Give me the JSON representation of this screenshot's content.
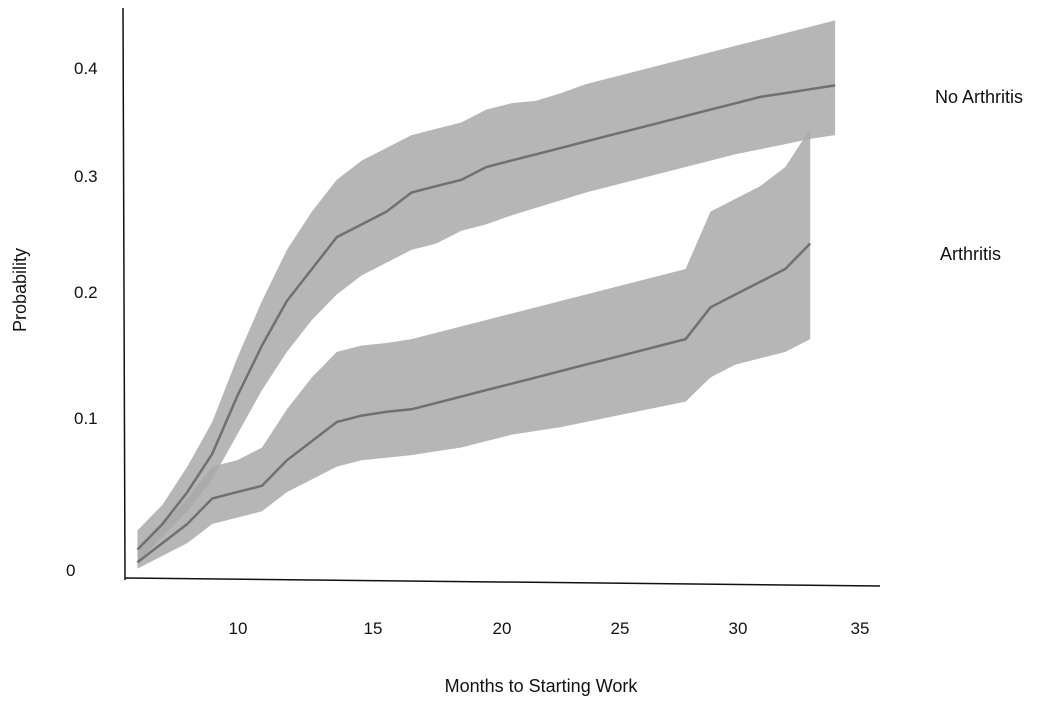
{
  "chart_data": {
    "type": "line",
    "title": "",
    "xlabel": "Months to Starting Work",
    "ylabel": "Probability",
    "xlim": [
      5.5,
      35
    ],
    "ylim": [
      0,
      0.4
    ],
    "x_ticks": [
      "10",
      "15",
      "20",
      "25",
      "30",
      "35"
    ],
    "y_ticks": [
      "0",
      "0.1",
      "0.2",
      "0.3",
      "0.4"
    ],
    "grid": false,
    "series": [
      {
        "name": "No Arthritis",
        "color": "#707070",
        "band_color": "#a9a9a9",
        "x": [
          6,
          7,
          8,
          9,
          10,
          11,
          12,
          13,
          14,
          15,
          16,
          17,
          18,
          19,
          20,
          21,
          22,
          23,
          24,
          25,
          26,
          27,
          28,
          29,
          30,
          31,
          32,
          33,
          34
        ],
        "y": [
          0.02,
          0.04,
          0.065,
          0.095,
          0.14,
          0.18,
          0.215,
          0.24,
          0.265,
          0.275,
          0.285,
          0.3,
          0.305,
          0.31,
          0.32,
          0.325,
          0.33,
          0.335,
          0.34,
          0.345,
          0.35,
          0.355,
          0.36,
          0.365,
          0.37,
          0.375,
          0.378,
          0.381,
          0.384
        ],
        "lower": [
          0.01,
          0.03,
          0.05,
          0.075,
          0.11,
          0.145,
          0.175,
          0.2,
          0.22,
          0.235,
          0.245,
          0.255,
          0.26,
          0.27,
          0.275,
          0.282,
          0.288,
          0.294,
          0.3,
          0.305,
          0.31,
          0.315,
          0.32,
          0.325,
          0.33,
          0.334,
          0.338,
          0.342,
          0.345
        ],
        "upper": [
          0.035,
          0.055,
          0.085,
          0.12,
          0.17,
          0.215,
          0.255,
          0.285,
          0.31,
          0.325,
          0.335,
          0.345,
          0.35,
          0.355,
          0.365,
          0.37,
          0.372,
          0.378,
          0.385,
          0.39,
          0.395,
          0.4,
          0.405,
          0.41,
          0.415,
          0.42,
          0.425,
          0.43,
          0.435
        ]
      },
      {
        "name": "Arthritis",
        "color": "#707070",
        "band_color": "#a9a9a9",
        "x": [
          6,
          7,
          8,
          9,
          10,
          11,
          12,
          13,
          14,
          15,
          16,
          17,
          18,
          19,
          20,
          21,
          22,
          23,
          24,
          25,
          26,
          27,
          28,
          29,
          30,
          31,
          32,
          33
        ],
        "y": [
          0.01,
          0.025,
          0.04,
          0.06,
          0.065,
          0.07,
          0.09,
          0.105,
          0.12,
          0.125,
          0.128,
          0.13,
          0.135,
          0.14,
          0.145,
          0.15,
          0.155,
          0.16,
          0.165,
          0.17,
          0.175,
          0.18,
          0.185,
          0.21,
          0.22,
          0.23,
          0.24,
          0.26
        ],
        "lower": [
          0.005,
          0.015,
          0.025,
          0.04,
          0.045,
          0.05,
          0.065,
          0.075,
          0.085,
          0.09,
          0.092,
          0.094,
          0.097,
          0.1,
          0.105,
          0.11,
          0.113,
          0.116,
          0.12,
          0.124,
          0.128,
          0.132,
          0.136,
          0.155,
          0.165,
          0.17,
          0.175,
          0.185
        ],
        "upper": [
          0.02,
          0.04,
          0.06,
          0.085,
          0.09,
          0.1,
          0.13,
          0.155,
          0.175,
          0.18,
          0.182,
          0.185,
          0.19,
          0.195,
          0.2,
          0.205,
          0.21,
          0.215,
          0.22,
          0.225,
          0.23,
          0.235,
          0.24,
          0.285,
          0.295,
          0.305,
          0.32,
          0.35
        ]
      }
    ]
  }
}
